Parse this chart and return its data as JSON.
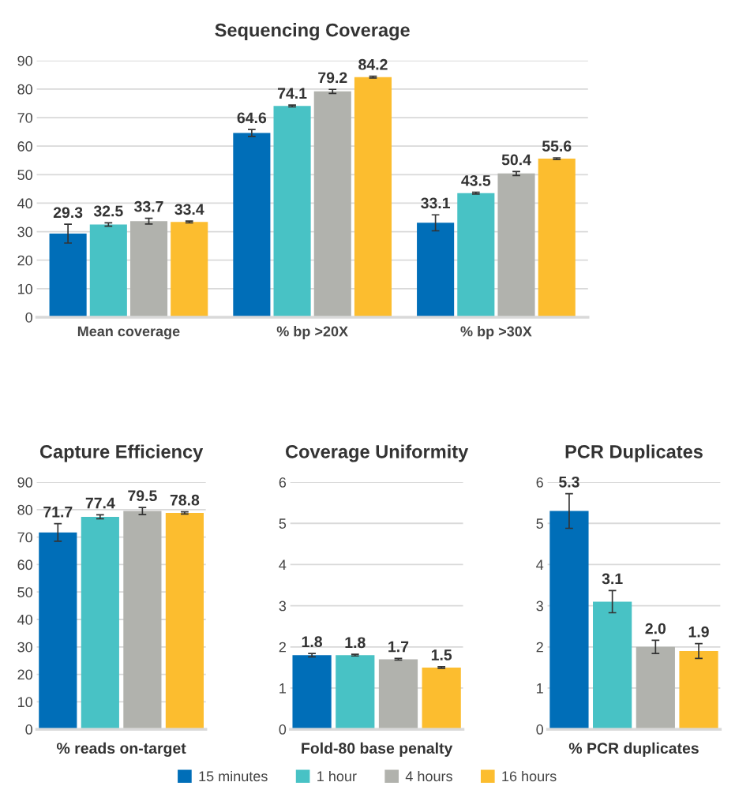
{
  "chart_data": [
    {
      "type": "bar",
      "title": "Sequencing Coverage",
      "categories": [
        "Mean coverage",
        "% bp >20X",
        "% bp >30X"
      ],
      "ylim": [
        0,
        90
      ],
      "yticks": [
        0,
        10,
        20,
        30,
        40,
        50,
        60,
        70,
        80,
        90
      ],
      "grid": "y",
      "data_labels": true,
      "legend": "bottom",
      "series": [
        {
          "name": "15 minutes",
          "color": "#006eb8",
          "values": [
            29.3,
            64.6,
            33.1
          ],
          "errors": [
            3.3,
            1.2,
            2.8
          ]
        },
        {
          "name": "1 hour",
          "color": "#48c2c5",
          "values": [
            32.5,
            74.1,
            43.5
          ],
          "errors": [
            0.6,
            0.3,
            0.3
          ]
        },
        {
          "name": "4 hours",
          "color": "#b1b2ad",
          "values": [
            33.7,
            79.2,
            50.4
          ],
          "errors": [
            1.0,
            0.7,
            0.7
          ]
        },
        {
          "name": "16 hours",
          "color": "#fcbd2f",
          "values": [
            33.4,
            84.2,
            55.6
          ],
          "errors": [
            0.3,
            0.3,
            0.3
          ]
        }
      ]
    },
    {
      "type": "bar",
      "title": "Capture Efficiency",
      "xlabel": "% reads on-target",
      "categories": [
        null,
        null,
        null,
        null
      ],
      "ylim": [
        0,
        90
      ],
      "yticks": [
        0,
        10,
        20,
        30,
        40,
        50,
        60,
        70,
        80,
        90
      ],
      "grid": "y",
      "data_labels": true,
      "colors": [
        "#006eb8",
        "#48c2c5",
        "#b1b2ad",
        "#fcbd2f"
      ],
      "values": [
        71.7,
        77.4,
        79.5,
        78.8
      ],
      "errors": [
        3.2,
        0.7,
        1.3,
        0.4
      ]
    },
    {
      "type": "bar",
      "title": "Coverage Uniformity",
      "xlabel": "Fold-80 base penalty",
      "categories": [
        null,
        null,
        null,
        null
      ],
      "ylim": [
        0,
        6
      ],
      "yticks": [
        0,
        1,
        2,
        3,
        4,
        5,
        6
      ],
      "grid": "y",
      "data_labels": true,
      "colors": [
        "#006eb8",
        "#48c2c5",
        "#b1b2ad",
        "#fcbd2f"
      ],
      "values": [
        1.8,
        1.8,
        1.7,
        1.5
      ],
      "errors": [
        0.04,
        0.02,
        0.02,
        0.02
      ]
    },
    {
      "type": "bar",
      "title": "PCR Duplicates",
      "xlabel": "% PCR duplicates",
      "categories": [
        null,
        null,
        null,
        null
      ],
      "ylim": [
        0,
        6
      ],
      "yticks": [
        0,
        1,
        2,
        3,
        4,
        5,
        6
      ],
      "grid": "y",
      "colors": [
        "#006eb8",
        "#48c2c5",
        "#b1b2ad",
        "#fcbd2f"
      ],
      "values": [
        5.3,
        3.1,
        2.0,
        1.9
      ],
      "value_labels": [
        "5.3",
        "3.1",
        "2.0",
        "1.9"
      ],
      "errors": [
        0.42,
        0.27,
        0.16,
        0.18
      ]
    }
  ]
}
